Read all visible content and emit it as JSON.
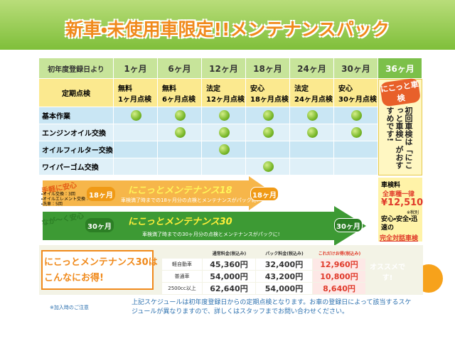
{
  "title": "新車・未使用車限定!!メンテナンスパック",
  "schedule": {
    "header": [
      "初年度登録日より",
      "1ヶ月",
      "6ヶ月",
      "12ヶ月",
      "18ヶ月",
      "24ヶ月",
      "30ヶ月",
      "36ヶ月"
    ],
    "inspection": {
      "label": "定期点検",
      "cells": [
        {
          "tag": "無料",
          "name": "1ヶ月点検"
        },
        {
          "tag": "無料",
          "name": "6ヶ月点検"
        },
        {
          "tag": "法定",
          "name": "12ヶ月点検"
        },
        {
          "tag": "安心",
          "name": "18ヶ月点検"
        },
        {
          "tag": "法定",
          "name": "24ヶ月点検"
        },
        {
          "tag": "安心",
          "name": "30ヶ月点検"
        }
      ]
    },
    "rows": [
      {
        "label": "基本作業",
        "checks": [
          true,
          true,
          true,
          true,
          true,
          true
        ]
      },
      {
        "label": "エンジンオイル交換",
        "checks": [
          false,
          true,
          true,
          true,
          true,
          true
        ]
      },
      {
        "label": "オイルフィルター交換",
        "checks": [
          false,
          false,
          true,
          false,
          false,
          false
        ]
      },
      {
        "label": "ワイパーゴム交換",
        "checks": [
          false,
          false,
          false,
          true,
          false,
          false
        ]
      }
    ],
    "shaken_badge": "にこっと車検",
    "recommend": "初回車検は「にこっと車検」がおすすめです!",
    "fee": {
      "label": "車検料",
      "uniform": "全車種一律",
      "price": "¥12,510",
      "tax": "※税別",
      "features": "安心・安全・迅速の",
      "title": "完全対話車検"
    }
  },
  "plans": [
    {
      "catch": "手軽に安心",
      "notes": [
        "・オイル交換：3回",
        "・オイルエレメント交換：1回",
        "・洗車：5回"
      ],
      "start_label": "18ヶ月",
      "name": "にこっとメンテナンス18",
      "desc": "車検満了時までの18ヶ月分の点検とメンテナンスがパックに!",
      "end_label": "18ヶ月"
    },
    {
      "catch": "なが〜く安心",
      "start_label": "30ヶ月",
      "name": "にこっとメンテナンス30",
      "desc": "車検満了時までの30ヶ月分の点検とメンテナンスがパックに!",
      "end_label": "30ヶ月"
    }
  ],
  "price": {
    "headline": [
      "にこっとメンテナンス30は",
      "こんなにお得!"
    ],
    "headers": [
      "通常料金(税込み)",
      "パック料金(税込み)",
      "これだけお得(税込み)"
    ],
    "rows": [
      [
        "軽自動車",
        "45,360円",
        "32,400円",
        "12,960円"
      ],
      [
        "普通車",
        "54,000円",
        "43,200円",
        "10,800円"
      ],
      [
        "2500cc以上",
        "62,640円",
        "54,000円",
        "8,640円"
      ]
    ],
    "badge": "オススメです!"
  },
  "footer": {
    "note": "※加入時のご注意",
    "text": "上記スケジュールは初年度登録日からの定期点検となります。お車の登録日によって該当するスケジュールが異なりますので、詳しくはスタッフまでお問い合わせください。"
  }
}
